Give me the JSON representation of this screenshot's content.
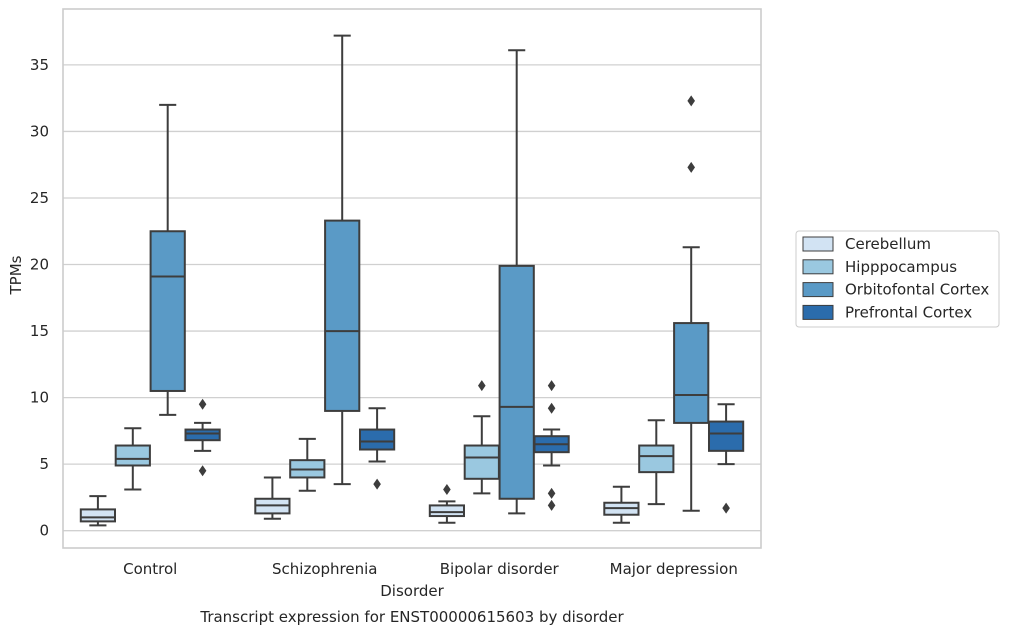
{
  "chart_data": {
    "type": "box",
    "title": "Transcript expression for ENST00000615603 by disorder",
    "xlabel": "Disorder",
    "ylabel": "TPMs",
    "ylim": [
      -1.3,
      39.2
    ],
    "yticks": [
      0,
      5,
      10,
      15,
      20,
      25,
      30,
      35
    ],
    "grid": true,
    "legend_position": "right",
    "categories": [
      "Control",
      "Schizophrenia",
      "Bipolar disorder",
      "Major depression"
    ],
    "series": [
      {
        "name": "Cerebellum",
        "color": "#d2e3f3",
        "boxes": [
          {
            "whislo": 0.4,
            "q1": 0.7,
            "med": 1.0,
            "q3": 1.6,
            "whishi": 2.6,
            "fliers": []
          },
          {
            "whislo": 0.9,
            "q1": 1.3,
            "med": 1.9,
            "q3": 2.4,
            "whishi": 4.0,
            "fliers": []
          },
          {
            "whislo": 0.6,
            "q1": 1.1,
            "med": 1.4,
            "q3": 1.9,
            "whishi": 2.2,
            "fliers": [
              3.1
            ]
          },
          {
            "whislo": 0.6,
            "q1": 1.2,
            "med": 1.7,
            "q3": 2.1,
            "whishi": 3.3,
            "fliers": []
          }
        ]
      },
      {
        "name": "Hipppocampus",
        "color": "#9ac8e0",
        "boxes": [
          {
            "whislo": 3.1,
            "q1": 4.9,
            "med": 5.4,
            "q3": 6.4,
            "whishi": 7.7,
            "fliers": []
          },
          {
            "whislo": 3.0,
            "q1": 4.0,
            "med": 4.6,
            "q3": 5.3,
            "whishi": 6.9,
            "fliers": []
          },
          {
            "whislo": 2.8,
            "q1": 3.9,
            "med": 5.5,
            "q3": 6.4,
            "whishi": 8.6,
            "fliers": [
              10.9
            ]
          },
          {
            "whislo": 2.0,
            "q1": 4.4,
            "med": 5.6,
            "q3": 6.4,
            "whishi": 8.3,
            "fliers": []
          }
        ]
      },
      {
        "name": "Orbitofontal Cortex",
        "color": "#5a9ac6",
        "boxes": [
          {
            "whislo": 8.7,
            "q1": 10.5,
            "med": 19.1,
            "q3": 22.5,
            "whishi": 32.0,
            "fliers": []
          },
          {
            "whislo": 3.5,
            "q1": 9.0,
            "med": 15.0,
            "q3": 23.3,
            "whishi": 37.2,
            "fliers": []
          },
          {
            "whislo": 1.3,
            "q1": 2.4,
            "med": 9.3,
            "q3": 19.9,
            "whishi": 36.1,
            "fliers": []
          },
          {
            "whislo": 1.5,
            "q1": 8.1,
            "med": 10.2,
            "q3": 15.6,
            "whishi": 21.3,
            "fliers": [
              27.3,
              32.3
            ]
          }
        ]
      },
      {
        "name": "Prefrontal Cortex",
        "color": "#2b6cac",
        "boxes": [
          {
            "whislo": 6.0,
            "q1": 6.8,
            "med": 7.3,
            "q3": 7.6,
            "whishi": 8.1,
            "fliers": [
              4.5,
              9.5
            ]
          },
          {
            "whislo": 5.2,
            "q1": 6.1,
            "med": 6.7,
            "q3": 7.6,
            "whishi": 9.2,
            "fliers": [
              3.5
            ]
          },
          {
            "whislo": 4.9,
            "q1": 5.9,
            "med": 6.5,
            "q3": 7.1,
            "whishi": 7.6,
            "fliers": [
              1.9,
              2.8,
              9.2,
              10.9
            ]
          },
          {
            "whislo": 5.0,
            "q1": 6.0,
            "med": 7.3,
            "q3": 8.2,
            "whishi": 9.5,
            "fliers": [
              1.7
            ]
          }
        ]
      }
    ]
  }
}
